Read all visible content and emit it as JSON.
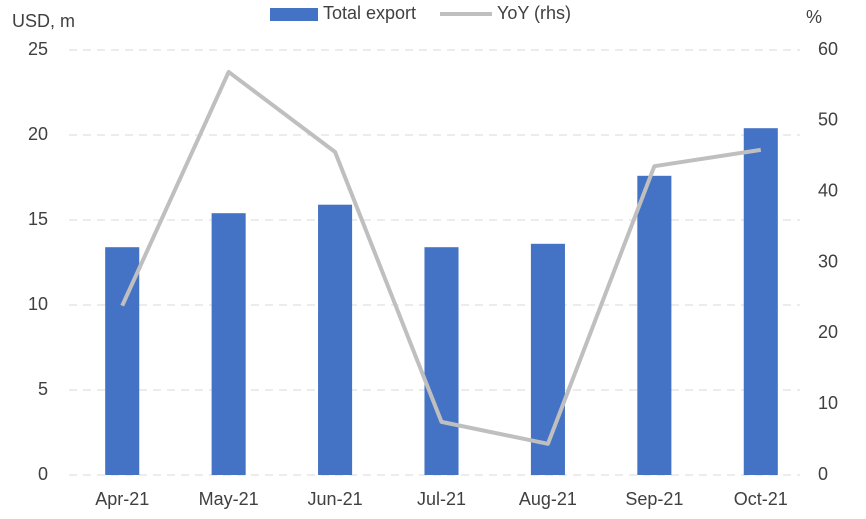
{
  "chart_data": {
    "type": "bar-line",
    "y_label": "USD, m",
    "y2_label": "%",
    "categories": [
      "Apr-21",
      "May-21",
      "Jun-21",
      "Jul-21",
      "Aug-21",
      "Sep-21",
      "Oct-21"
    ],
    "series": [
      {
        "name": "Total export",
        "color": "#4472c4",
        "type": "bar",
        "values": [
          13.4,
          15.4,
          15.9,
          13.4,
          13.6,
          17.6,
          20.4
        ]
      },
      {
        "name": "YoY (rhs)",
        "color": "#bfbfbf",
        "type": "line",
        "axis": "y2",
        "values": [
          23.9,
          56.9,
          45.6,
          7.5,
          4.4,
          43.6,
          45.9
        ]
      }
    ],
    "ylim": [
      0,
      25
    ],
    "yticks": [
      0,
      5,
      10,
      15,
      20,
      25
    ],
    "y2lim": [
      0,
      60
    ],
    "y2ticks": [
      0,
      10,
      20,
      30,
      40,
      50,
      60
    ],
    "grid": true,
    "legend": "top"
  }
}
